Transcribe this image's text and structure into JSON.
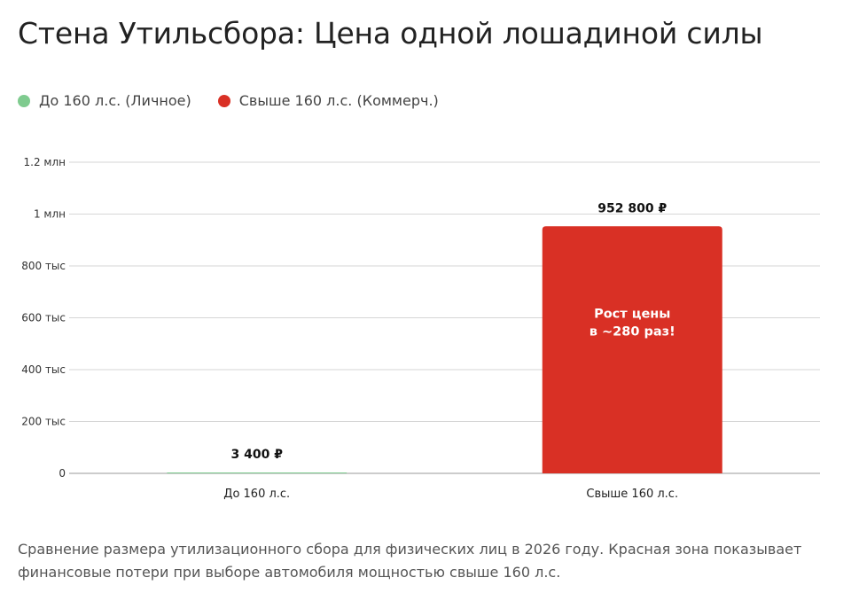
{
  "page": {
    "title": "Стена Утильсбора: Цена одной лошадиной силы",
    "caption": "Сравнение размера утилизационного сбора для физических лиц в 2026 году. Красная зона показывает финансовые потери при выборе автомобиля мощностью свыше 160 л.с."
  },
  "legend": [
    {
      "label": "До 160 л.с. (Личное)",
      "color": "#7fcb8f"
    },
    {
      "label": "Свыше 160 л.с. (Коммерч.)",
      "color": "#d93025"
    }
  ],
  "chart_data": {
    "type": "bar",
    "title": "Стена Утильсбора: Цена одной лошадиной силы",
    "categories": [
      "До 160 л.с.",
      "Свыше 160 л.с."
    ],
    "values": [
      3400,
      952800
    ],
    "value_labels": [
      "3 400 ₽",
      "952 800 ₽"
    ],
    "colors": [
      "#7fcb8f",
      "#d93025"
    ],
    "ylim": [
      0,
      1200000
    ],
    "yticks": [
      0,
      200000,
      400000,
      600000,
      800000,
      1000000,
      1200000
    ],
    "ytick_labels": [
      "0",
      "200 тыс",
      "400 тыс",
      "600 тыс",
      "800 тыс",
      "1 млн",
      "1.2 млн"
    ],
    "annotation": {
      "category": "Свыше 160 л.с.",
      "lines": [
        "Рост цены",
        "в ~280 раз!"
      ]
    },
    "grid": true,
    "legend_position": "top-left"
  }
}
